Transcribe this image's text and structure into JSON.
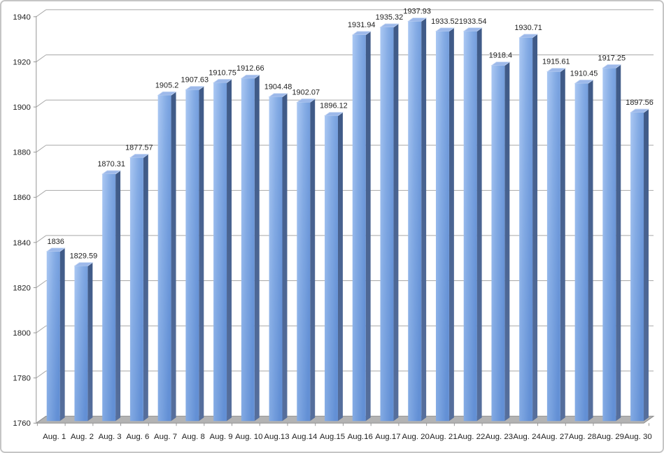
{
  "chart_data": {
    "type": "bar",
    "style": "3d-column",
    "title": "",
    "xlabel": "",
    "ylabel": "",
    "categories": [
      "Aug. 1",
      "Aug. 2",
      "Aug. 3",
      "Aug. 6",
      "Aug. 7",
      "Aug. 8",
      "Aug. 9",
      "Aug. 10",
      "Aug.13",
      "Aug.14",
      "Aug.15",
      "Aug.16",
      "Aug.17",
      "Aug. 20",
      "Aug. 21",
      "Aug. 22",
      "Aug. 23",
      "Aug. 24",
      "Aug. 27",
      "Aug. 28",
      "Aug. 29",
      "Aug. 30"
    ],
    "values": [
      1836,
      1829.59,
      1870.31,
      1877.57,
      1905.2,
      1907.63,
      1910.75,
      1912.66,
      1904.48,
      1902.07,
      1896.12,
      1931.94,
      1935.32,
      1937.93,
      1933.52,
      1933.54,
      1918.4,
      1930.71,
      1915.61,
      1910.45,
      1917.25,
      1897.56
    ],
    "data_labels_visible": true,
    "ylim": [
      1760,
      1940
    ],
    "yticks": [
      1760,
      1780,
      1800,
      1820,
      1840,
      1860,
      1880,
      1900,
      1920,
      1940
    ],
    "grid": true,
    "legend": "none"
  },
  "colors": {
    "bar_front_light": "#abc8f3",
    "bar_front_mid": "#84abe4",
    "bar_front_dark": "#6390d5",
    "bar_side_dark": "#3f5a87",
    "bar_side_light": "#566f9d",
    "bar_top": "#9db9ea",
    "bar_top_edge": "#c9d9f4",
    "floor": "#b3b3b3",
    "floor_edge": "#8f8f8f",
    "gridline": "#a8a8a8",
    "axis": "#969696",
    "text": "#1f1f1f",
    "frame_border": "#c5c5c5",
    "background": "#ffffff"
  }
}
